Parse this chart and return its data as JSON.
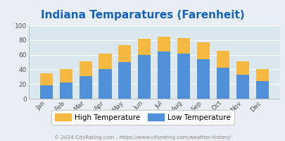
{
  "months": [
    "Jan",
    "Feb",
    "Mar",
    "Apr",
    "May",
    "Jun",
    "Jul",
    "Aug",
    "Sep",
    "Oct",
    "Nov",
    "Dec"
  ],
  "high_temps": [
    35,
    40,
    51,
    62,
    73,
    82,
    85,
    83,
    77,
    65,
    51,
    40
  ],
  "low_temps": [
    18,
    22,
    31,
    40,
    50,
    60,
    64,
    62,
    54,
    42,
    33,
    24
  ],
  "bar_color_low": "#4f90d9",
  "bar_color_high": "#f5b942",
  "title": "Indiana Temparatures (Farenheit)",
  "title_color": "#1463bf",
  "background_color": "#e8eef4",
  "plot_bg_color": "#dce8f0",
  "ylim": [
    0,
    100
  ],
  "yticks": [
    0,
    20,
    40,
    60,
    80,
    100
  ],
  "legend_high": "High Temperature",
  "legend_low": "Low Temperature",
  "footer": "© 2024 CityRating.com - https://www.cityrating.com/weather-history/"
}
